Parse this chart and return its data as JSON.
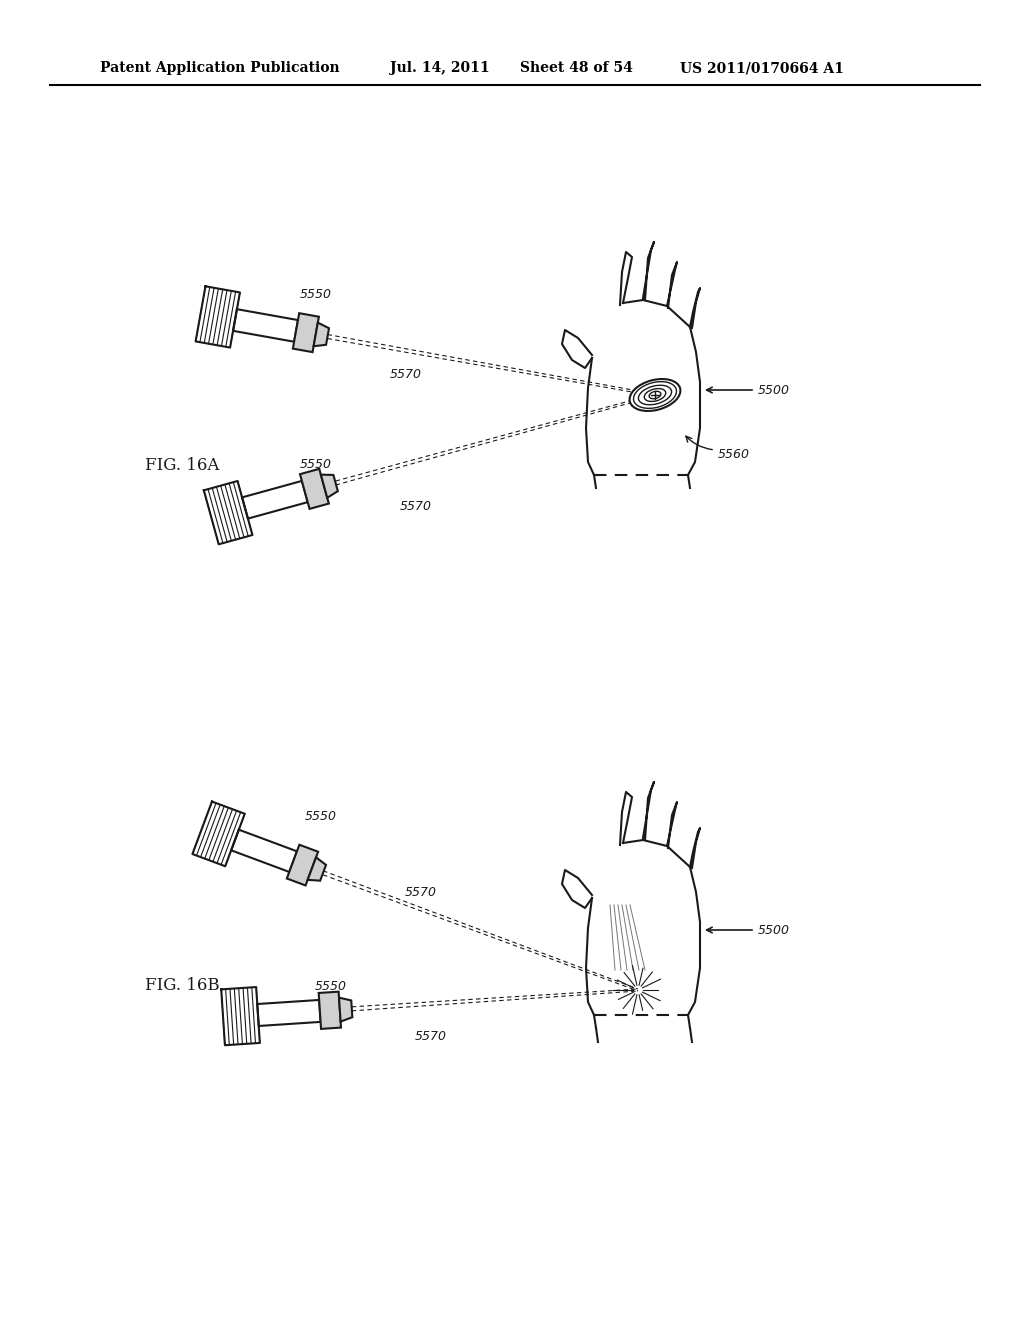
{
  "bg_color": "#ffffff",
  "header_text": "Patent Application Publication",
  "header_date": "Jul. 14, 2011",
  "header_sheet": "Sheet 48 of 54",
  "header_patent": "US 2011/0170664 A1",
  "fig_label_a": "FIG. 16A",
  "fig_label_b": "FIG. 16B",
  "label_5500": "5500",
  "label_5550": "5550",
  "label_5560": "5560",
  "label_5570": "5570"
}
